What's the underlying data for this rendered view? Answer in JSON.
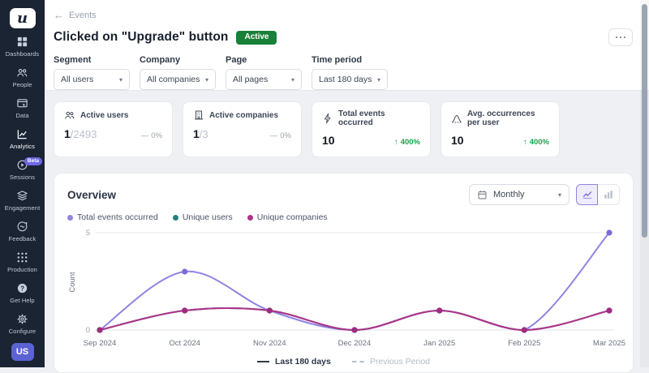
{
  "colors": {
    "accent": "#6f66e8",
    "active_badge": "#188038",
    "positive": "#16a34a",
    "sidebar_bg": "#1b2433",
    "avatar_bg": "#5b63d3"
  },
  "sidebar": {
    "logo": "u",
    "items": [
      {
        "label": "Dashboards",
        "icon": "dashboards-icon"
      },
      {
        "label": "People",
        "icon": "people-icon"
      },
      {
        "label": "Data",
        "icon": "data-icon"
      },
      {
        "label": "Analytics",
        "icon": "analytics-icon",
        "active": true
      },
      {
        "label": "Sessions",
        "icon": "sessions-icon",
        "badge": "Beta"
      },
      {
        "label": "Engagement",
        "icon": "engagement-icon"
      },
      {
        "label": "Feedback",
        "icon": "feedback-icon"
      }
    ],
    "bottom_items": [
      {
        "label": "Production",
        "icon": "production-icon"
      },
      {
        "label": "Get Help",
        "icon": "help-icon"
      },
      {
        "label": "Configure",
        "icon": "configure-icon"
      }
    ],
    "avatar": "US"
  },
  "header": {
    "breadcrumb": "Events",
    "title": "Clicked on \"Upgrade\" button",
    "status": "Active"
  },
  "filters": [
    {
      "label": "Segment",
      "value": "All users"
    },
    {
      "label": "Company",
      "value": "All companies"
    },
    {
      "label": "Page",
      "value": "All pages"
    },
    {
      "label": "Time period",
      "value": "Last 180 days"
    }
  ],
  "stats": [
    {
      "label": "Active users",
      "icon": "users-icon",
      "value": "1",
      "total": "/2493",
      "change": "0%",
      "direction": "flat"
    },
    {
      "label": "Active companies",
      "icon": "company-icon",
      "value": "1",
      "total": "/3",
      "change": "0%",
      "direction": "flat"
    },
    {
      "label": "Total events occurred",
      "icon": "lightning-icon",
      "value": "10",
      "change": "400%",
      "direction": "up"
    },
    {
      "label": "Avg. occurrences per user",
      "icon": "bell-curve-icon",
      "value": "10",
      "change": "400%",
      "direction": "up"
    }
  ],
  "overview": {
    "title": "Overview",
    "granularity": "Monthly",
    "legend": [
      {
        "label": "Total events occurred",
        "color": "#8f83e2"
      },
      {
        "label": "Unique users",
        "color": "#1f8080"
      },
      {
        "label": "Unique companies",
        "color": "#b0338a"
      }
    ],
    "footer_legend": [
      {
        "label": "Last 180 days",
        "style": "solid"
      },
      {
        "label": "Previous Period",
        "style": "dashed"
      }
    ]
  },
  "chart_data": {
    "type": "line",
    "x": [
      "Sep 2024",
      "Oct 2024",
      "Nov 2024",
      "Dec 2024",
      "Jan 2025",
      "Feb 2025",
      "Mar 2025"
    ],
    "series": [
      {
        "name": "Total events occurred",
        "color": "#8f83e2",
        "point_color": "#7b6dd6",
        "values": [
          0,
          3,
          1,
          0,
          1,
          0,
          5
        ]
      },
      {
        "name": "Unique users",
        "color": "#1f8080",
        "point_color": "#1f8080",
        "values": [
          0,
          1,
          1,
          0,
          1,
          0,
          1
        ]
      },
      {
        "name": "Unique companies",
        "color": "#b0338a",
        "point_color": "#a02c7f",
        "values": [
          0,
          1,
          1,
          0,
          1,
          0,
          1
        ]
      }
    ],
    "title": "Overview",
    "xlabel": "",
    "ylabel": "Count",
    "yticks": [
      0,
      5
    ],
    "ylim": [
      0,
      5
    ],
    "grid": "horizontal-top-only",
    "legend_position": "top-left"
  }
}
